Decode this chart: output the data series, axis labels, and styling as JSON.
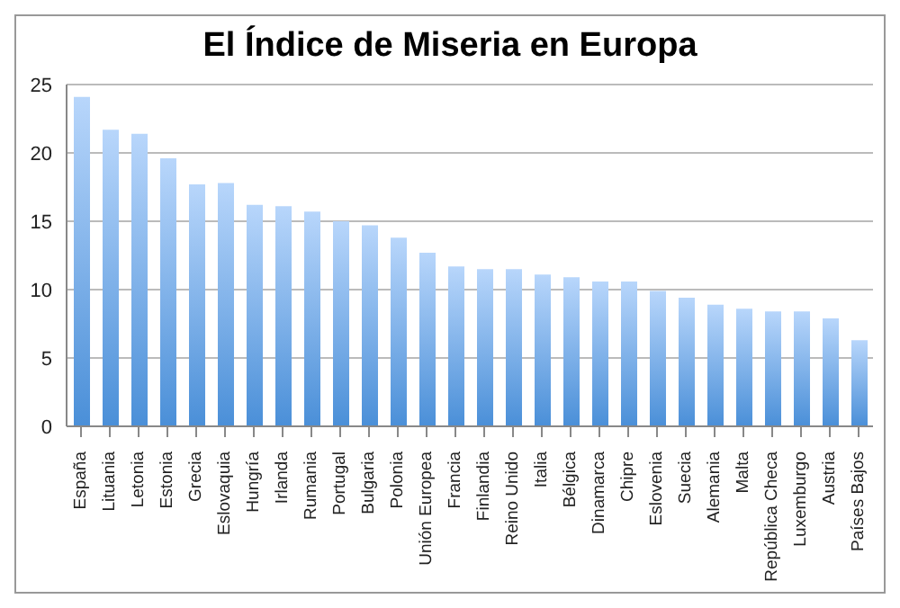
{
  "chart_data": {
    "type": "bar",
    "title": "El Índice de Miseria en Europa",
    "categories": [
      "España",
      "Lituania",
      "Letonia",
      "Estonia",
      "Grecia",
      "Eslovaquia",
      "Hungría",
      "Irlanda",
      "Rumania",
      "Portugal",
      "Bulgaria",
      "Polonia",
      "Unión Europea",
      "Francia",
      "Finlandia",
      "Reino Unido",
      "Italia",
      "Bélgica",
      "Dinamarca",
      "Chipre",
      "Eslovenia",
      "Suecia",
      "Alemania",
      "Malta",
      "República Checa",
      "Luxemburgo",
      "Austria",
      "Países Bajos"
    ],
    "values": [
      24.1,
      21.7,
      21.4,
      19.6,
      17.7,
      17.8,
      16.2,
      16.1,
      15.7,
      15.0,
      14.7,
      13.8,
      12.7,
      11.7,
      11.5,
      11.5,
      11.1,
      10.9,
      10.6,
      10.6,
      9.9,
      9.4,
      8.9,
      8.6,
      8.4,
      8.4,
      7.9,
      6.3
    ],
    "color": "#4a8fd8",
    "ylim": [
      0,
      25
    ],
    "yticks": [
      0,
      5,
      10,
      15,
      20,
      25
    ],
    "grid": "y"
  }
}
